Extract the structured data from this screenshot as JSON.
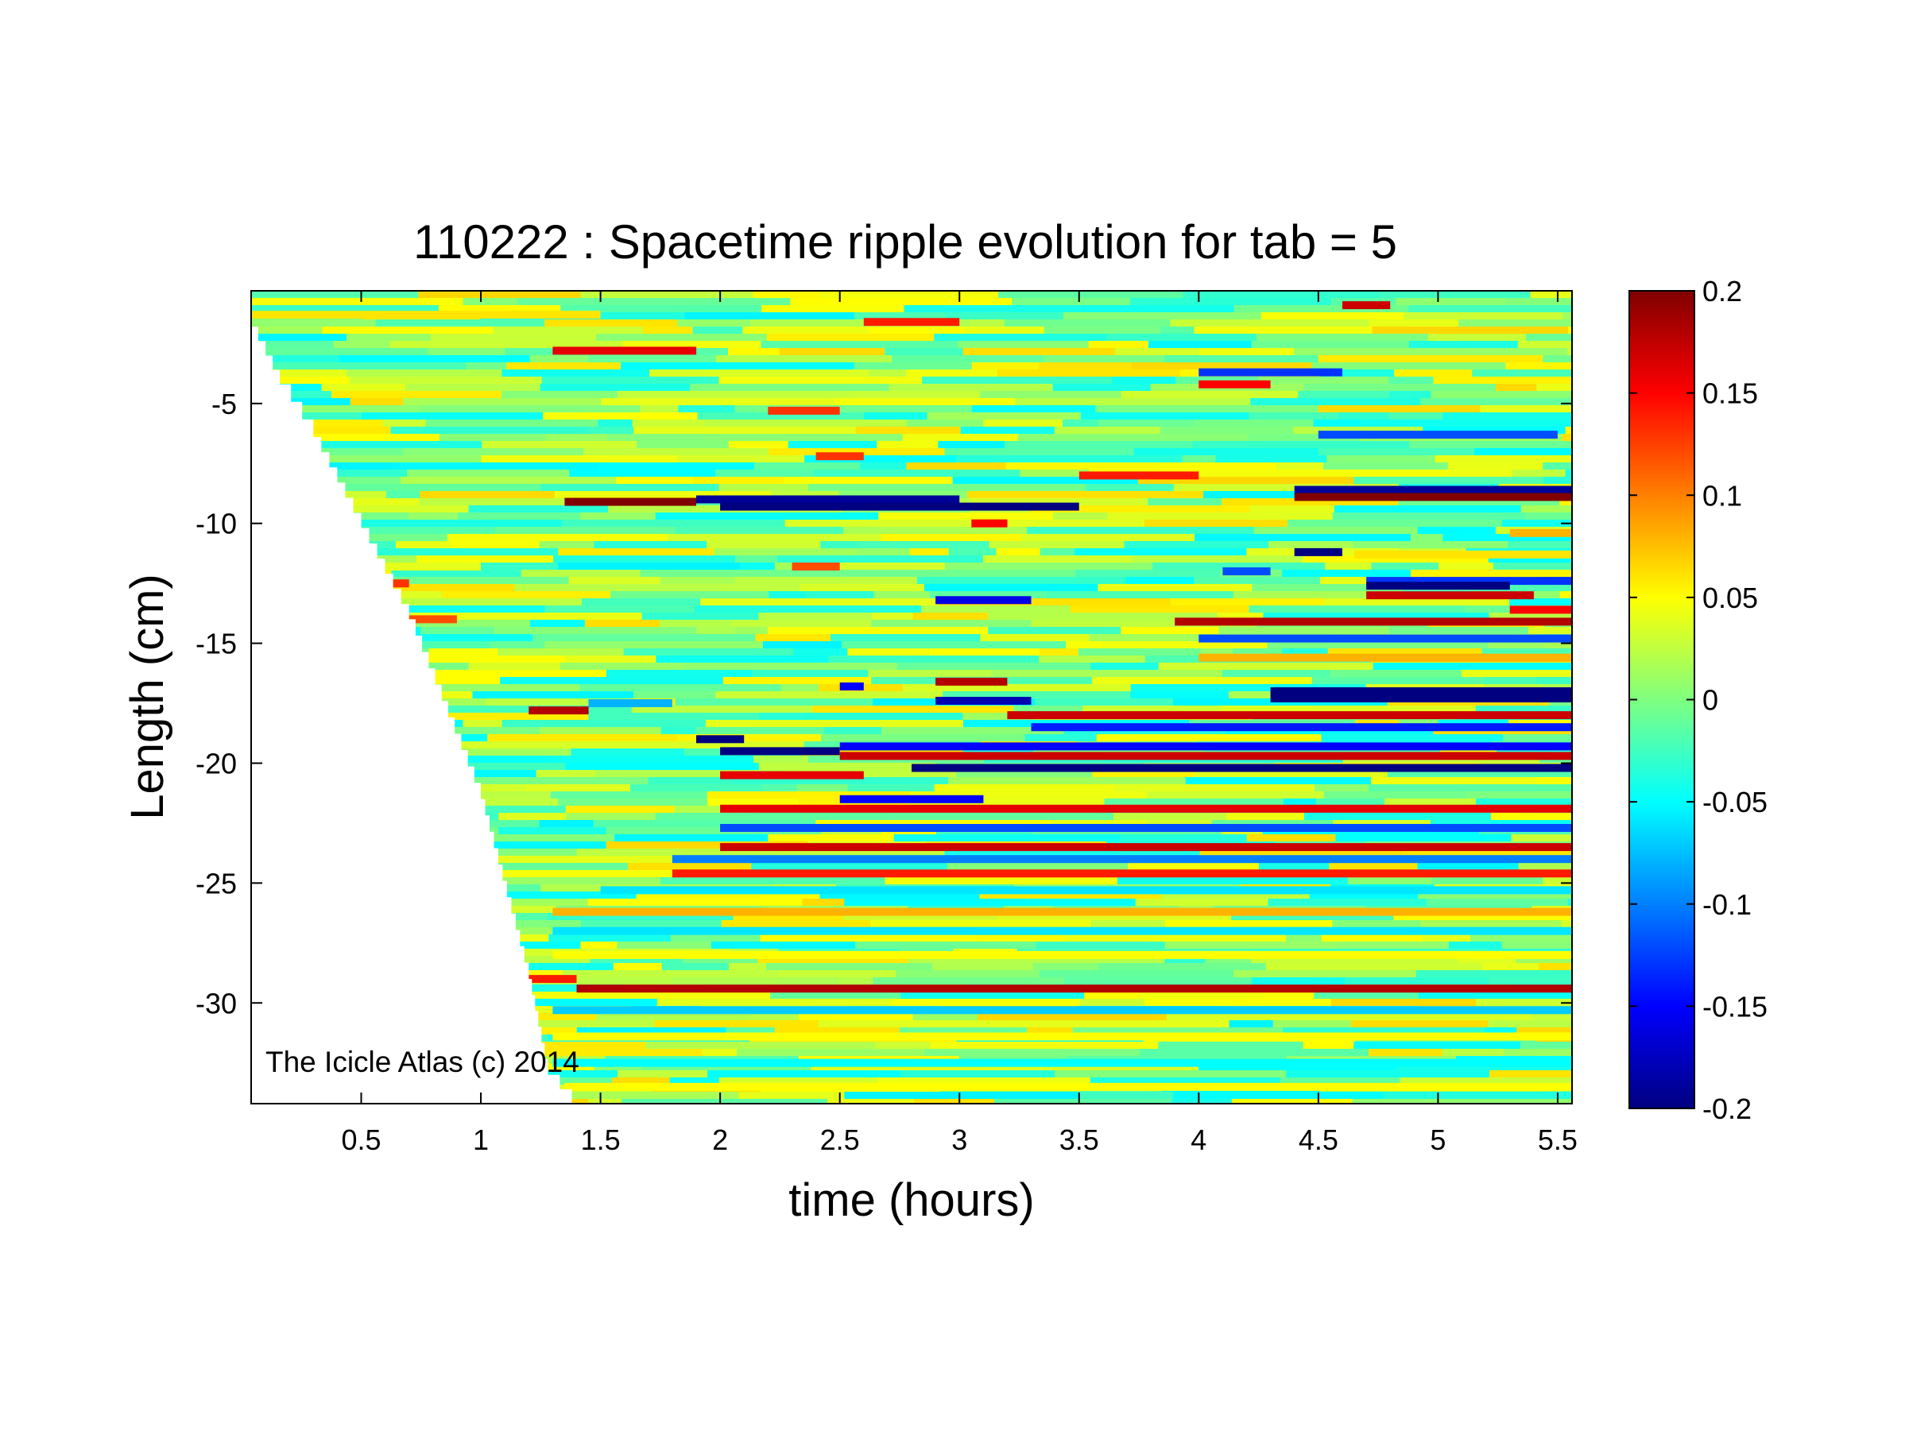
{
  "chart_data": {
    "type": "heatmap",
    "title": "110222 : Spacetime ripple evolution for tab = 5",
    "xlabel": "time (hours)",
    "ylabel": "Length (cm)",
    "xlim": [
      0.04,
      5.56
    ],
    "ylim": [
      -34.2,
      -0.3
    ],
    "x_ticks": [
      {
        "value": 0.5,
        "label": "0.5"
      },
      {
        "value": 1,
        "label": "1"
      },
      {
        "value": 1.5,
        "label": "1.5"
      },
      {
        "value": 2,
        "label": "2"
      },
      {
        "value": 2.5,
        "label": "2.5"
      },
      {
        "value": 3,
        "label": "3"
      },
      {
        "value": 3.5,
        "label": "3.5"
      },
      {
        "value": 4,
        "label": "4"
      },
      {
        "value": 4.5,
        "label": "4.5"
      },
      {
        "value": 5,
        "label": "5"
      },
      {
        "value": 5.5,
        "label": "5.5"
      }
    ],
    "y_ticks": [
      {
        "value": -5,
        "label": "-5"
      },
      {
        "value": -10,
        "label": "-10"
      },
      {
        "value": -15,
        "label": "-15"
      },
      {
        "value": -20,
        "label": "-20"
      },
      {
        "value": -25,
        "label": "-25"
      },
      {
        "value": -30,
        "label": "-30"
      }
    ],
    "colorbar": {
      "colormap": "jet",
      "clim": [
        -0.2,
        0.2
      ],
      "ticks": [
        {
          "value": 0.2,
          "label": "0.2"
        },
        {
          "value": 0.15,
          "label": "0.15"
        },
        {
          "value": 0.1,
          "label": "0.1"
        },
        {
          "value": 0.05,
          "label": "0.05"
        },
        {
          "value": 0,
          "label": "0"
        },
        {
          "value": -0.05,
          "label": "-0.05"
        },
        {
          "value": -0.1,
          "label": "-0.1"
        },
        {
          "value": -0.15,
          "label": "-0.15"
        },
        {
          "value": -0.2,
          "label": "-0.2"
        }
      ]
    },
    "background_value": 0.0,
    "icicle_tip": [
      {
        "t": 0.04,
        "y": -1.8
      },
      {
        "t": 0.16,
        "y": -4.2
      },
      {
        "t": 0.3,
        "y": -6.4
      },
      {
        "t": 0.5,
        "y": -10.2
      },
      {
        "t": 0.7,
        "y": -14.0
      },
      {
        "t": 1.0,
        "y": -21.5
      },
      {
        "t": 1.2,
        "y": -29.0
      },
      {
        "t": 1.28,
        "y": -33.0
      },
      {
        "t": 1.38,
        "y": -34.2
      }
    ],
    "bands": [
      {
        "y": -1.3,
        "t0": 0.04,
        "t1": 1.5,
        "value": 0.06
      },
      {
        "y": -2.8,
        "t0": 1.3,
        "t1": 1.9,
        "value": 0.16
      },
      {
        "y": -1.6,
        "t0": 2.6,
        "t1": 3.0,
        "value": 0.14
      },
      {
        "y": -0.9,
        "t0": 4.6,
        "t1": 4.8,
        "value": 0.17
      },
      {
        "y": -4.2,
        "t0": 4.0,
        "t1": 4.3,
        "value": 0.15
      },
      {
        "y": -3.7,
        "t0": 4.0,
        "t1": 4.6,
        "value": -0.13
      },
      {
        "y": -6.3,
        "t0": 4.5,
        "t1": 5.5,
        "value": -0.12
      },
      {
        "y": -5.3,
        "t0": 2.2,
        "t1": 2.5,
        "value": 0.13
      },
      {
        "y": -8.0,
        "t0": 3.5,
        "t1": 4.0,
        "value": 0.14
      },
      {
        "y": -8.6,
        "t0": 4.4,
        "t1": 5.56,
        "value": -0.19
      },
      {
        "y": -8.9,
        "t0": 4.4,
        "t1": 5.56,
        "value": 0.2
      },
      {
        "y": -9.1,
        "t0": 1.35,
        "t1": 1.9,
        "value": 0.2
      },
      {
        "y": -9.0,
        "t0": 1.9,
        "t1": 3.0,
        "value": -0.19
      },
      {
        "y": -9.3,
        "t0": 2.0,
        "t1": 3.5,
        "value": -0.2
      },
      {
        "y": -10.0,
        "t0": 3.05,
        "t1": 3.2,
        "value": 0.15
      },
      {
        "y": -10.4,
        "t0": 5.3,
        "t1": 5.56,
        "value": 0.08
      },
      {
        "y": -11.2,
        "t0": 4.4,
        "t1": 4.6,
        "value": -0.2
      },
      {
        "y": -11.3,
        "t0": 4.65,
        "t1": 5.56,
        "value": 0.06
      },
      {
        "y": -12.4,
        "t0": 4.7,
        "t1": 5.56,
        "value": -0.13
      },
      {
        "y": -12.6,
        "t0": 4.7,
        "t1": 5.3,
        "value": -0.2
      },
      {
        "y": -13.0,
        "t0": 4.7,
        "t1": 5.4,
        "value": 0.17
      },
      {
        "y": -13.6,
        "t0": 5.3,
        "t1": 5.56,
        "value": 0.15
      },
      {
        "y": -14.1,
        "t0": 3.9,
        "t1": 5.56,
        "value": 0.18
      },
      {
        "y": -14.8,
        "t0": 4.0,
        "t1": 5.56,
        "value": -0.12
      },
      {
        "y": -13.2,
        "t0": 2.9,
        "t1": 3.3,
        "value": -0.16
      },
      {
        "y": -15.6,
        "t0": 4.0,
        "t1": 5.56,
        "value": 0.08
      },
      {
        "y": -16.6,
        "t0": 2.9,
        "t1": 3.2,
        "value": 0.18
      },
      {
        "y": -17.0,
        "t0": 4.3,
        "t1": 5.56,
        "value": -0.2
      },
      {
        "y": -17.3,
        "t0": 4.3,
        "t1": 5.56,
        "value": -0.2
      },
      {
        "y": -17.4,
        "t0": 2.9,
        "t1": 3.3,
        "value": -0.18
      },
      {
        "y": -17.8,
        "t0": 1.2,
        "t1": 1.45,
        "value": 0.18
      },
      {
        "y": -18.0,
        "t0": 3.2,
        "t1": 5.56,
        "value": 0.17
      },
      {
        "y": -18.5,
        "t0": 3.3,
        "t1": 5.56,
        "value": -0.14
      },
      {
        "y": -19.0,
        "t0": 1.9,
        "t1": 2.1,
        "value": -0.2
      },
      {
        "y": -19.5,
        "t0": 2.0,
        "t1": 2.5,
        "value": -0.2
      },
      {
        "y": -19.3,
        "t0": 2.5,
        "t1": 5.56,
        "value": -0.15
      },
      {
        "y": -19.7,
        "t0": 2.5,
        "t1": 5.56,
        "value": 0.17
      },
      {
        "y": -20.2,
        "t0": 2.8,
        "t1": 5.56,
        "value": -0.2
      },
      {
        "y": -20.5,
        "t0": 2.0,
        "t1": 2.6,
        "value": 0.16
      },
      {
        "y": -21.5,
        "t0": 2.5,
        "t1": 3.1,
        "value": -0.15
      },
      {
        "y": -21.9,
        "t0": 2.0,
        "t1": 5.56,
        "value": 0.16
      },
      {
        "y": -22.7,
        "t0": 2.0,
        "t1": 5.56,
        "value": -0.12
      },
      {
        "y": -23.5,
        "t0": 2.0,
        "t1": 5.56,
        "value": 0.17
      },
      {
        "y": -24.0,
        "t0": 1.8,
        "t1": 5.56,
        "value": -0.1
      },
      {
        "y": -24.6,
        "t0": 1.8,
        "t1": 5.56,
        "value": 0.14
      },
      {
        "y": -25.3,
        "t0": 1.5,
        "t1": 5.56,
        "value": -0.06
      },
      {
        "y": -26.2,
        "t0": 1.3,
        "t1": 5.56,
        "value": 0.08
      },
      {
        "y": -27.0,
        "t0": 1.3,
        "t1": 5.56,
        "value": -0.06
      },
      {
        "y": -28.0,
        "t0": 1.3,
        "t1": 5.56,
        "value": 0.05
      },
      {
        "y": -29.0,
        "t0": 1.2,
        "t1": 1.4,
        "value": 0.14
      },
      {
        "y": -29.4,
        "t0": 1.4,
        "t1": 5.56,
        "value": 0.18
      },
      {
        "y": -30.3,
        "t0": 1.3,
        "t1": 5.56,
        "value": -0.07
      },
      {
        "y": -31.4,
        "t0": 1.3,
        "t1": 5.56,
        "value": 0.05
      },
      {
        "y": -32.5,
        "t0": 1.3,
        "t1": 5.56,
        "value": -0.05
      },
      {
        "y": -33.5,
        "t0": 1.35,
        "t1": 5.56,
        "value": 0.05
      },
      {
        "y": -11.8,
        "t0": 0.5,
        "t1": 1.0,
        "value": 0.04
      },
      {
        "y": -14.0,
        "t0": 0.6,
        "t1": 0.9,
        "value": 0.12
      },
      {
        "y": -12.5,
        "t0": 0.4,
        "t1": 0.7,
        "value": 0.13
      },
      {
        "y": -17.5,
        "t0": 1.45,
        "t1": 1.8,
        "value": -0.08
      },
      {
        "y": -16.8,
        "t0": 2.5,
        "t1": 2.6,
        "value": -0.15
      },
      {
        "y": -7.2,
        "t0": 2.4,
        "t1": 2.6,
        "value": 0.13
      },
      {
        "y": -11.8,
        "t0": 2.3,
        "t1": 2.5,
        "value": 0.12
      },
      {
        "y": -12.0,
        "t0": 4.1,
        "t1": 4.3,
        "value": -0.12
      }
    ],
    "watermark": "The Icicle Atlas (c) 2014"
  }
}
